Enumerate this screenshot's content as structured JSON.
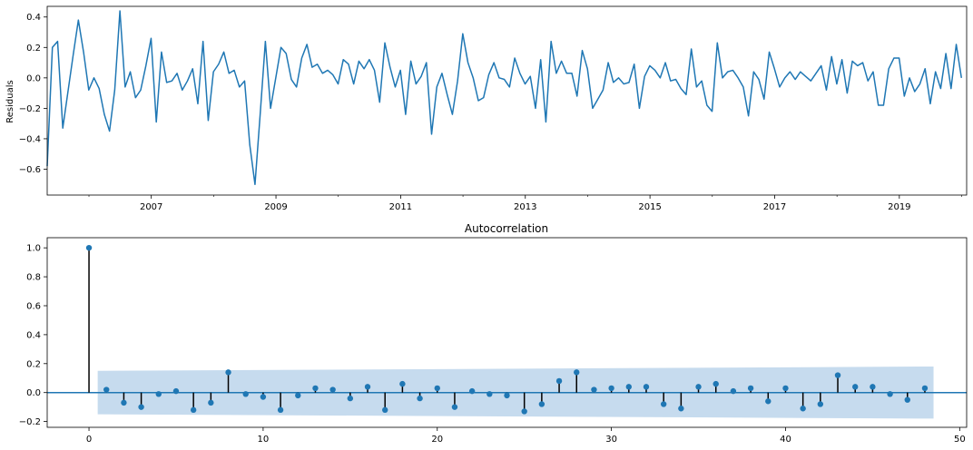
{
  "chart_data": [
    {
      "type": "line",
      "title": "",
      "xlabel": "",
      "ylabel": "Residuals",
      "xlim": [
        2005.33,
        2020.08
      ],
      "ylim": [
        -0.77,
        0.47
      ],
      "x_ticks": [
        2007,
        2009,
        2011,
        2013,
        2015,
        2017,
        2019
      ],
      "x_tick_labels": [
        "2007",
        "2009",
        "2011",
        "2013",
        "2015",
        "2017",
        "2019"
      ],
      "y_ticks": [
        -0.6,
        -0.4,
        -0.2,
        0.0,
        0.2,
        0.4
      ],
      "y_tick_labels": [
        "−0.6",
        "−0.4",
        "−0.2",
        "0.0",
        "0.2",
        "0.4"
      ],
      "x_start": 2005.33,
      "x_step_months": 1,
      "color": "#1f77b4",
      "grid": false,
      "series": [
        {
          "values": [
            -0.58,
            0.2,
            0.24,
            -0.33,
            -0.09,
            0.15,
            0.38,
            0.17,
            -0.08,
            0.0,
            -0.07,
            -0.24,
            -0.35,
            -0.08,
            0.44,
            -0.06,
            0.04,
            -0.13,
            -0.08,
            0.08,
            0.26,
            -0.29,
            0.17,
            -0.03,
            -0.02,
            0.03,
            -0.08,
            -0.02,
            0.06,
            -0.17,
            0.24,
            -0.28,
            0.04,
            0.09,
            0.17,
            0.03,
            0.05,
            -0.06,
            -0.02,
            -0.44,
            -0.7,
            -0.24,
            0.24,
            -0.2,
            0.0,
            0.2,
            0.16,
            -0.01,
            -0.06,
            0.13,
            0.22,
            0.07,
            0.09,
            0.03,
            0.05,
            0.02,
            -0.04,
            0.12,
            0.09,
            -0.04,
            0.11,
            0.06,
            0.12,
            0.05,
            -0.16,
            0.23,
            0.07,
            -0.06,
            0.05,
            -0.24,
            0.11,
            -0.04,
            0.01,
            0.1,
            -0.37,
            -0.06,
            0.03,
            -0.11,
            -0.24,
            -0.02,
            0.29,
            0.1,
            0.0,
            -0.15,
            -0.13,
            0.02,
            0.1,
            0.0,
            -0.01,
            -0.06,
            0.13,
            0.03,
            -0.04,
            0.01,
            -0.2,
            0.12,
            -0.29,
            0.24,
            0.03,
            0.11,
            0.03,
            0.03,
            -0.12,
            0.18,
            0.06,
            -0.2,
            -0.14,
            -0.08,
            0.1,
            -0.03,
            0.0,
            -0.04,
            -0.03,
            0.09,
            -0.2,
            0.01,
            0.08,
            0.05,
            0.0,
            0.1,
            -0.02,
            -0.01,
            -0.07,
            -0.11,
            0.19,
            -0.06,
            -0.02,
            -0.18,
            -0.22,
            0.23,
            0.0,
            0.04,
            0.05,
            0.0,
            -0.06,
            -0.25,
            0.04,
            -0.01,
            -0.14,
            0.17,
            0.06,
            -0.06,
            0.0,
            0.04,
            -0.01,
            0.04,
            0.01,
            -0.02,
            0.03,
            0.08,
            -0.08,
            0.14,
            -0.04,
            0.12,
            -0.1,
            0.11,
            0.08,
            0.1,
            -0.02,
            0.04,
            -0.18,
            -0.18,
            0.06,
            0.13,
            0.13,
            -0.12,
            0.0,
            -0.09,
            -0.04,
            0.06,
            -0.17,
            0.04,
            -0.07,
            0.16,
            -0.07,
            0.22,
            0.0
          ]
        }
      ]
    },
    {
      "type": "scatter",
      "title": "Autocorrelation",
      "xlabel": "",
      "ylabel": "",
      "xlim": [
        -2.4,
        50.4
      ],
      "ylim": [
        -0.24,
        1.07
      ],
      "x_ticks": [
        0,
        10,
        20,
        30,
        40,
        50
      ],
      "x_tick_labels": [
        "0",
        "10",
        "20",
        "30",
        "40",
        "50"
      ],
      "y_ticks": [
        -0.2,
        0.0,
        0.2,
        0.4,
        0.6,
        0.8,
        1.0
      ],
      "y_tick_labels": [
        "−0.2",
        "0.0",
        "0.2",
        "0.4",
        "0.6",
        "0.8",
        "1.0"
      ],
      "color": "#1f77b4",
      "band_color": "#c6dbee",
      "stem_color": "#000000",
      "grid": false,
      "lags": [
        0,
        1,
        2,
        3,
        4,
        5,
        6,
        7,
        8,
        9,
        10,
        11,
        12,
        13,
        14,
        15,
        16,
        17,
        18,
        19,
        20,
        21,
        22,
        23,
        24,
        25,
        26,
        27,
        28,
        29,
        30,
        31,
        32,
        33,
        34,
        35,
        36,
        37,
        38,
        39,
        40,
        41,
        42,
        43,
        44,
        45,
        46,
        47,
        48
      ],
      "values": [
        1.0,
        0.02,
        -0.07,
        -0.1,
        -0.01,
        0.01,
        -0.12,
        -0.07,
        0.14,
        -0.01,
        -0.03,
        -0.12,
        -0.02,
        0.03,
        0.02,
        -0.04,
        0.04,
        -0.12,
        0.06,
        -0.04,
        0.03,
        -0.1,
        0.01,
        -0.01,
        -0.02,
        -0.13,
        -0.08,
        0.08,
        0.14,
        0.02,
        0.03,
        0.04,
        0.04,
        -0.08,
        -0.11,
        0.04,
        0.06,
        0.01,
        0.03,
        -0.06,
        0.03,
        -0.11,
        -0.08,
        0.12,
        0.04,
        0.04,
        -0.01,
        -0.05,
        0.03
      ],
      "confidence_band": {
        "x": [
          0.5,
          48.5
        ],
        "upper": [
          0.15,
          0.18
        ],
        "lower": [
          -0.15,
          -0.18
        ]
      }
    }
  ]
}
